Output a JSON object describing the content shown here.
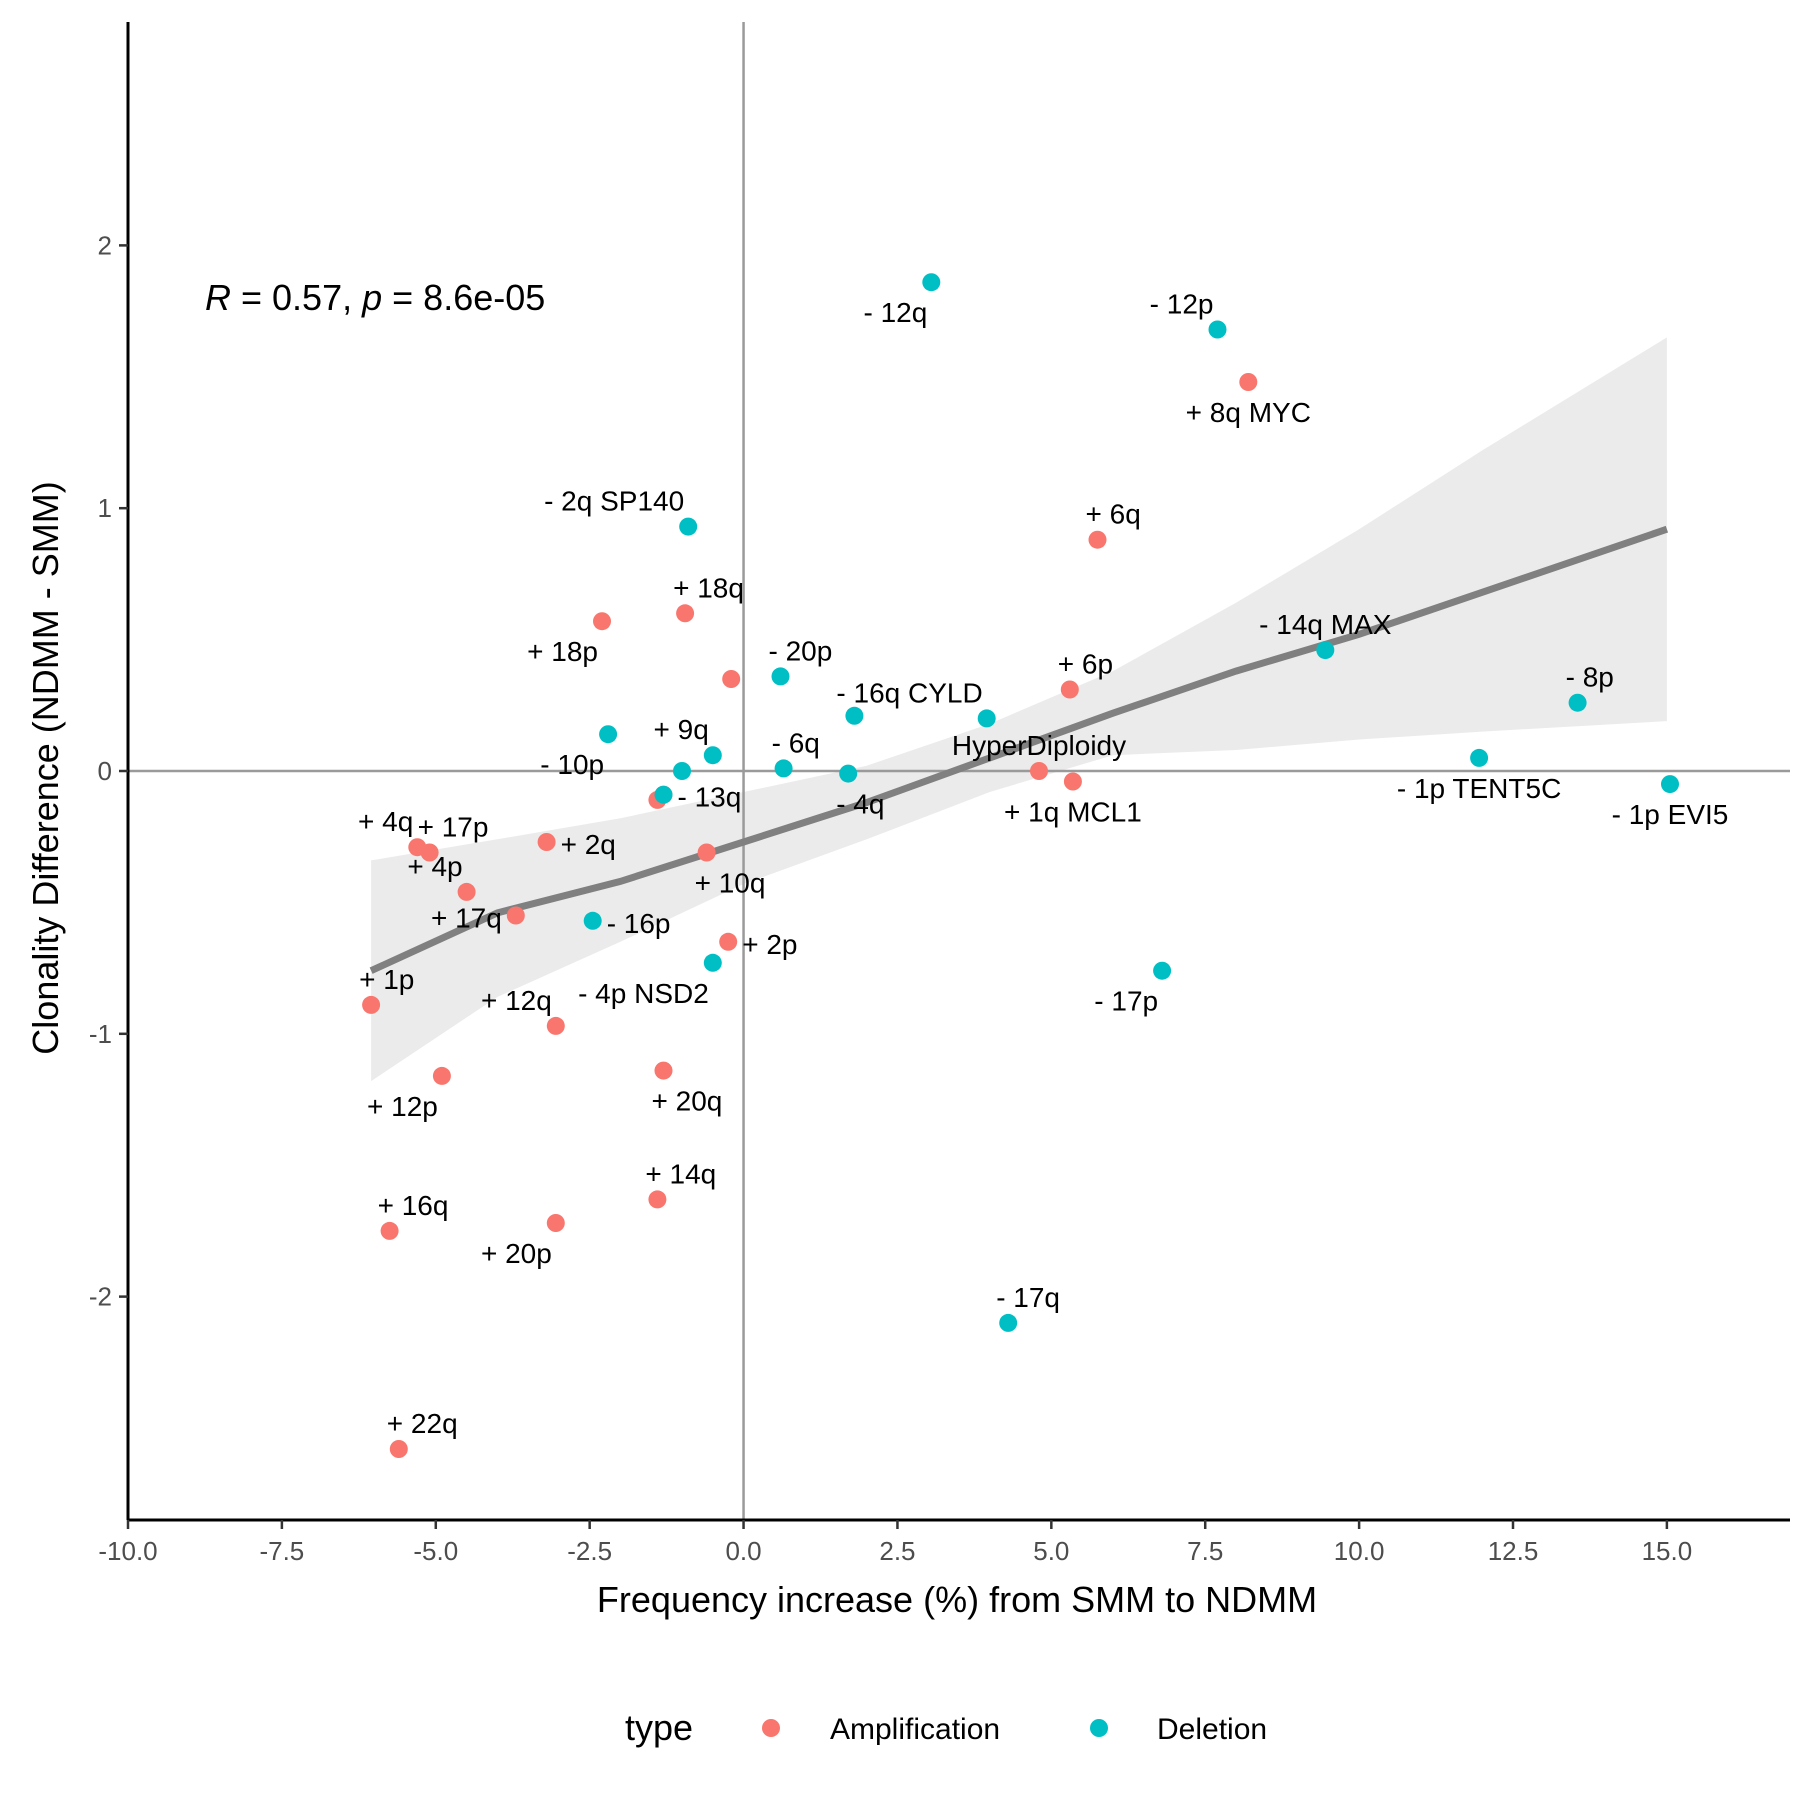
{
  "chart_data": {
    "type": "scatter",
    "xlabel": "Frequency increase (%) from SMM to NDMM",
    "ylabel": "Clonality Difference (NDMM - SMM)",
    "xlim": [
      -10.0,
      17.0
    ],
    "ylim": [
      -2.85,
      2.85
    ],
    "x_ticks": [
      -10.0,
      -7.5,
      -5.0,
      -2.5,
      0.0,
      2.5,
      5.0,
      7.5,
      10.0,
      12.5,
      15.0
    ],
    "x_tick_labels": [
      "-10.0",
      "-7.5",
      "-5.0",
      "-2.5",
      "0.0",
      "2.5",
      "5.0",
      "7.5",
      "10.0",
      "12.5",
      "15.0"
    ],
    "y_ticks": [
      -2,
      -1,
      0,
      1,
      2
    ],
    "y_tick_labels": [
      "-2",
      "-1",
      "0",
      "1",
      "2"
    ],
    "reference_lines": {
      "x": 0,
      "y": 0
    },
    "annotation": {
      "r_symbol": "R",
      "r_rest": " = 0.57, ",
      "p_symbol": "p",
      "p_rest": " = 8.6e-05"
    },
    "legend": {
      "title": "type",
      "position": "bottom",
      "entries": [
        {
          "label": "Amplification",
          "color": "#F8766D"
        },
        {
          "label": "Deletion",
          "color": "#00BFC4"
        }
      ]
    },
    "regression": {
      "x": [
        -6.05,
        -4.0,
        -2.0,
        0.0,
        2.0,
        4.0,
        6.0,
        8.0,
        10.0,
        12.0,
        15.0
      ],
      "fit": [
        -0.76,
        -0.54,
        -0.42,
        -0.27,
        -0.12,
        0.05,
        0.22,
        0.38,
        0.52,
        0.68,
        0.92
      ],
      "lower": [
        -1.18,
        -0.86,
        -0.65,
        -0.43,
        -0.26,
        -0.08,
        0.06,
        0.08,
        0.12,
        0.15,
        0.19
      ],
      "upper": [
        -0.34,
        -0.26,
        -0.18,
        -0.08,
        0.02,
        0.18,
        0.38,
        0.64,
        0.92,
        1.22,
        1.65
      ]
    },
    "series": [
      {
        "name": "Amplification",
        "color": "#F8766D",
        "points": [
          {
            "x": 8.2,
            "y": 1.48,
            "label": "+ 8q MYC",
            "anchor": "below"
          },
          {
            "x": 5.75,
            "y": 0.88,
            "label": "+ 6q",
            "anchor": "above-right"
          },
          {
            "x": -0.95,
            "y": 0.6,
            "label": "+ 18q",
            "anchor": "above-right"
          },
          {
            "x": -2.3,
            "y": 0.57,
            "label": "+ 18p",
            "anchor": "below-left"
          },
          {
            "x": -0.2,
            "y": 0.35,
            "label": "",
            "anchor": "none"
          },
          {
            "x": 5.3,
            "y": 0.31,
            "label": "+ 6p",
            "anchor": "above-right"
          },
          {
            "x": 4.8,
            "y": 0.0,
            "label": "HyperDiploidy",
            "anchor": "above"
          },
          {
            "x": 5.35,
            "y": -0.04,
            "label": "+ 1q MCL1",
            "anchor": "below"
          },
          {
            "x": -1.3,
            "y": -0.09,
            "label": "",
            "anchor": "none"
          },
          {
            "x": -1.4,
            "y": -0.11,
            "label": "",
            "anchor": "none"
          },
          {
            "x": -5.3,
            "y": -0.29,
            "label": "+ 4q",
            "anchor": "above-left"
          },
          {
            "x": -5.1,
            "y": -0.31,
            "label": "+ 17p",
            "anchor": "above-right"
          },
          {
            "x": -3.2,
            "y": -0.27,
            "label": "+ 2q",
            "anchor": "right"
          },
          {
            "x": -0.6,
            "y": -0.31,
            "label": "+ 10q",
            "anchor": "below-right"
          },
          {
            "x": -4.5,
            "y": -0.46,
            "label": "+ 4p",
            "anchor": "above-left"
          },
          {
            "x": -3.7,
            "y": -0.55,
            "label": "+ 17q",
            "anchor": "left"
          },
          {
            "x": -0.25,
            "y": -0.65,
            "label": "+ 2p",
            "anchor": "right"
          },
          {
            "x": -6.05,
            "y": -0.89,
            "label": "+ 1p",
            "anchor": "above-right"
          },
          {
            "x": -3.05,
            "y": -0.97,
            "label": "+ 12q",
            "anchor": "above-left"
          },
          {
            "x": -1.3,
            "y": -1.14,
            "label": "+ 20q",
            "anchor": "below-right"
          },
          {
            "x": -4.9,
            "y": -1.16,
            "label": "+ 12p",
            "anchor": "below-left"
          },
          {
            "x": -1.4,
            "y": -1.63,
            "label": "+ 14q",
            "anchor": "above-right"
          },
          {
            "x": -5.75,
            "y": -1.75,
            "label": "+ 16q",
            "anchor": "above-right"
          },
          {
            "x": -3.05,
            "y": -1.72,
            "label": "+ 20p",
            "anchor": "below-left"
          },
          {
            "x": -5.6,
            "y": -2.58,
            "label": "+ 22q",
            "anchor": "above-right"
          }
        ]
      },
      {
        "name": "Deletion",
        "color": "#00BFC4",
        "points": [
          {
            "x": 3.05,
            "y": 1.86,
            "label": "- 12q",
            "anchor": "below-left"
          },
          {
            "x": 7.7,
            "y": 1.68,
            "label": "- 12p",
            "anchor": "above-left"
          },
          {
            "x": -0.9,
            "y": 0.93,
            "label": "- 2q SP140",
            "anchor": "above-left"
          },
          {
            "x": 9.45,
            "y": 0.46,
            "label": "- 14q MAX",
            "anchor": "above"
          },
          {
            "x": 0.6,
            "y": 0.36,
            "label": "- 20p",
            "anchor": "above-right"
          },
          {
            "x": 13.55,
            "y": 0.26,
            "label": "- 8p",
            "anchor": "above-right"
          },
          {
            "x": 1.8,
            "y": 0.21,
            "label": "",
            "anchor": "none"
          },
          {
            "x": 3.95,
            "y": 0.2,
            "label": "- 16q CYLD",
            "anchor": "above-left"
          },
          {
            "x": -2.2,
            "y": 0.14,
            "label": "- 10p",
            "anchor": "below-left"
          },
          {
            "x": -0.5,
            "y": 0.06,
            "label": "+ 9q",
            "anchor": "above-left"
          },
          {
            "x": 11.95,
            "y": 0.05,
            "label": "- 1p TENT5C",
            "anchor": "below"
          },
          {
            "x": -1.0,
            "y": 0.0,
            "label": "",
            "anchor": "none"
          },
          {
            "x": 0.65,
            "y": 0.01,
            "label": "- 6q",
            "anchor": "above-right"
          },
          {
            "x": 1.7,
            "y": -0.01,
            "label": "- 4q",
            "anchor": "below-right"
          },
          {
            "x": 15.05,
            "y": -0.05,
            "label": "- 1p EVI5",
            "anchor": "below"
          },
          {
            "x": -1.3,
            "y": -0.09,
            "label": "- 13q",
            "anchor": "right"
          },
          {
            "x": -2.45,
            "y": -0.57,
            "label": "- 16p",
            "anchor": "right"
          },
          {
            "x": -0.5,
            "y": -0.73,
            "label": "- 4p NSD2",
            "anchor": "below-left"
          },
          {
            "x": 6.8,
            "y": -0.76,
            "label": "- 17p",
            "anchor": "below-left"
          },
          {
            "x": 4.3,
            "y": -2.1,
            "label": "- 17q",
            "anchor": "above-right"
          }
        ]
      }
    ]
  }
}
